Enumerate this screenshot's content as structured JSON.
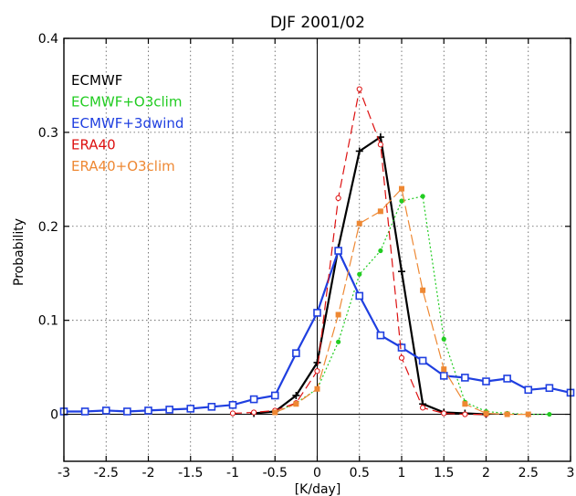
{
  "chart_data": {
    "type": "line",
    "title": "DJF 2001/02",
    "xlabel": "[K/day]",
    "ylabel": "Probability",
    "xlim": [
      -3,
      3
    ],
    "ylim": [
      -0.05,
      0.4
    ],
    "xticks": [
      -3,
      -2.5,
      -2,
      -1.5,
      -1,
      -0.5,
      0,
      0.5,
      1,
      1.5,
      2,
      2.5,
      3
    ],
    "xtick_labels": [
      "-3",
      "-2.5",
      "-2",
      "-1.5",
      "-1",
      "-0.5",
      "0",
      "0.5",
      "1",
      "1.5",
      "2",
      "2.5",
      "3"
    ],
    "yticks": [
      0,
      0.1,
      0.2,
      0.3,
      0.4
    ],
    "ytick_labels": [
      "0",
      "0.1",
      "0.2",
      "0.3",
      "0.4"
    ],
    "grid": true,
    "legend_position": "top-left",
    "series": [
      {
        "name": "ECMWF",
        "color": "#000000",
        "line": "solid",
        "marker": "plus",
        "x": [
          -0.75,
          -0.5,
          -0.25,
          0,
          0.25,
          0.5,
          0.75,
          1,
          1.25,
          1.5,
          1.75,
          2
        ],
        "y": [
          0.001,
          0.003,
          0.02,
          0.055,
          0.177,
          0.28,
          0.295,
          0.152,
          0.011,
          0.002,
          0.001,
          0.0
        ]
      },
      {
        "name": "ECMWF+O3clim",
        "color": "#22cc22",
        "line": "dotted",
        "marker": "dot",
        "x": [
          -0.5,
          -0.25,
          0,
          0.25,
          0.5,
          0.75,
          1,
          1.25,
          1.5,
          1.75,
          2,
          2.25,
          2.5,
          2.75
        ],
        "y": [
          0.002,
          0.012,
          0.027,
          0.077,
          0.149,
          0.174,
          0.227,
          0.232,
          0.08,
          0.013,
          0.003,
          0.001,
          0.0,
          0.0
        ]
      },
      {
        "name": "ECMWF+3dwind",
        "color": "#1f3fe0",
        "line": "solid",
        "marker": "square",
        "x": [
          -3,
          -2.75,
          -2.5,
          -2.25,
          -2,
          -1.75,
          -1.5,
          -1.25,
          -1,
          -0.75,
          -0.5,
          -0.25,
          0,
          0.25,
          0.5,
          0.75,
          1,
          1.25,
          1.5,
          1.75,
          2,
          2.25,
          2.5,
          2.75,
          3
        ],
        "y": [
          0.003,
          0.003,
          0.004,
          0.003,
          0.004,
          0.005,
          0.006,
          0.008,
          0.01,
          0.016,
          0.02,
          0.065,
          0.108,
          0.174,
          0.126,
          0.084,
          0.071,
          0.057,
          0.041,
          0.039,
          0.035,
          0.038,
          0.026,
          0.028,
          0.023
        ]
      },
      {
        "name": "ERA40",
        "color": "#dd1111",
        "line": "dashed",
        "marker": "circle",
        "x": [
          -1,
          -0.75,
          -0.5,
          -0.25,
          0,
          0.25,
          0.5,
          0.75,
          1,
          1.25,
          1.5,
          1.75,
          2
        ],
        "y": [
          0.001,
          0.002,
          0.004,
          0.012,
          0.046,
          0.23,
          0.346,
          0.287,
          0.06,
          0.007,
          0.001,
          0.0,
          0.0
        ]
      },
      {
        "name": "ERA40+O3clim",
        "color": "#ee8833",
        "line": "longdash",
        "marker": "filled-square",
        "x": [
          -0.5,
          -0.25,
          0,
          0.25,
          0.5,
          0.75,
          1,
          1.25,
          1.5,
          1.75,
          2,
          2.25,
          2.5
        ],
        "y": [
          0.002,
          0.011,
          0.027,
          0.106,
          0.203,
          0.216,
          0.24,
          0.132,
          0.048,
          0.011,
          0.001,
          0.0,
          0.0
        ]
      }
    ]
  }
}
